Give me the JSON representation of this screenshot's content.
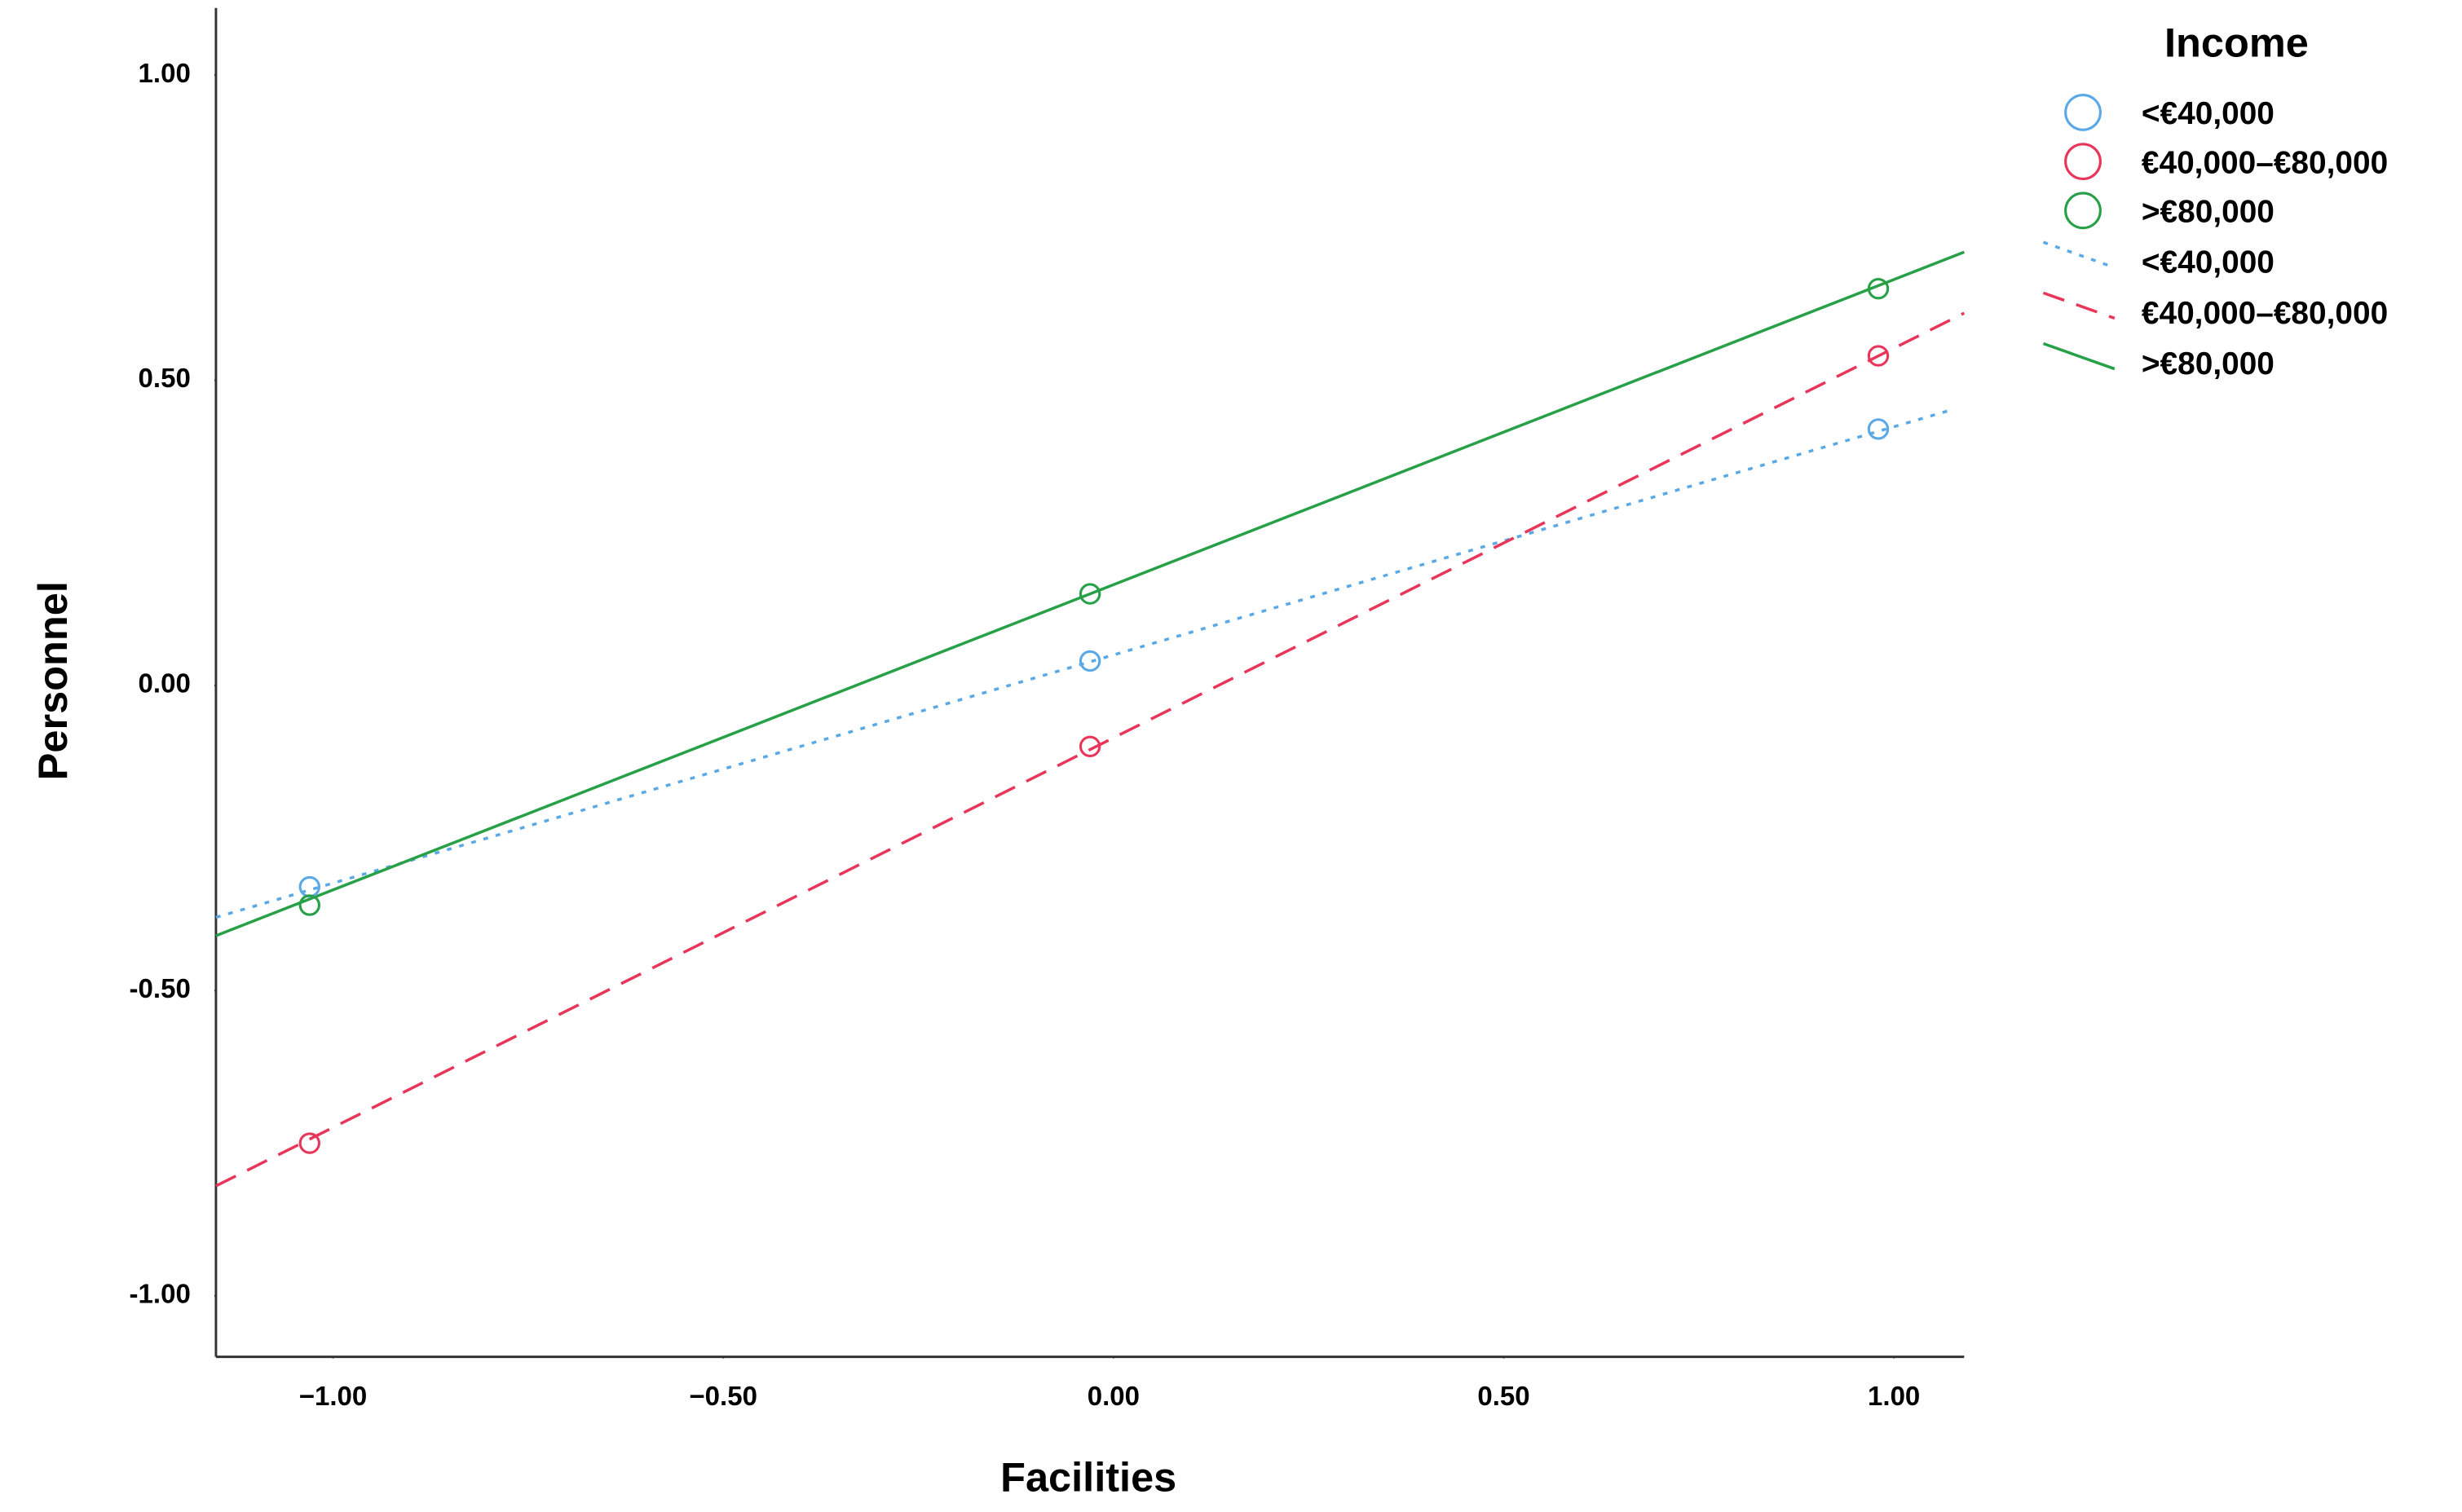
{
  "chart_data": {
    "type": "scatter",
    "x_label": "Facilities",
    "y_label": "Personnel",
    "legend_title": "Income",
    "xlim": [
      -1.15,
      1.09
    ],
    "ylim": [
      -1.1,
      1.11
    ],
    "xticks": [
      {
        "value": -1,
        "label": "−1.00"
      },
      {
        "value": -0.5,
        "label": "−0.50"
      },
      {
        "value": 0,
        "label": "0.00"
      },
      {
        "value": 0.5,
        "label": "0.50"
      },
      {
        "value": 1,
        "label": "1.00"
      }
    ],
    "yticks": [
      {
        "value": -1,
        "label": "-1.00"
      },
      {
        "value": -0.5,
        "label": "-0.50"
      },
      {
        "value": 0,
        "label": "0.00"
      },
      {
        "value": 0.5,
        "label": "0.50"
      },
      {
        "value": 1,
        "label": "1.00"
      }
    ],
    "grid": false,
    "series": [
      {
        "name": "<€40,000",
        "color": "#5aa9e6",
        "x": [
          -1.03,
          -0.03,
          0.98
        ],
        "values": [
          -0.33,
          0.04,
          0.42
        ]
      },
      {
        "name": "€40,000–€80,000",
        "color": "#e8365a",
        "x": [
          -1.03,
          -0.03,
          0.98
        ],
        "values": [
          -0.75,
          -0.1,
          0.54
        ]
      },
      {
        "name": ">€80,000",
        "color": "#27a047",
        "x": [
          -1.03,
          -0.03,
          0.98
        ],
        "values": [
          -0.36,
          0.15,
          0.65
        ]
      }
    ],
    "fit_lines": [
      {
        "name": "<€40,000",
        "color": "#5aa9e6",
        "style": "dotted",
        "x": [
          -1.15,
          1.07
        ],
        "values": [
          -0.38,
          0.45
        ]
      },
      {
        "name": "€40,000–€80,000",
        "color": "#e8365a",
        "style": "dashed",
        "x": [
          -1.15,
          1.09
        ],
        "values": [
          -0.82,
          0.61
        ]
      },
      {
        "name": ">€80,000",
        "color": "#27a047",
        "style": "solid",
        "x": [
          -1.15,
          1.09
        ],
        "values": [
          -0.41,
          0.71
        ]
      }
    ]
  }
}
